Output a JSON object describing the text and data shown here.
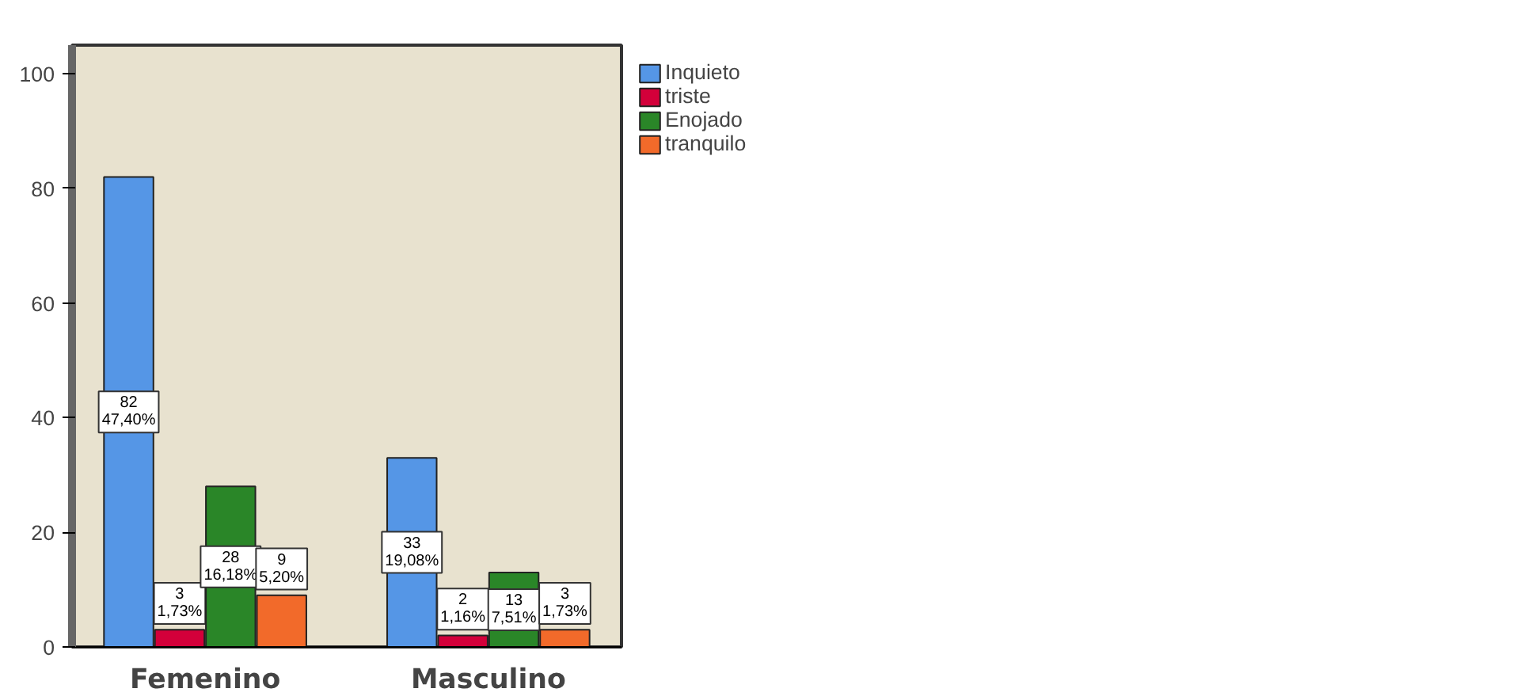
{
  "chart_data": {
    "type": "bar",
    "categories": [
      "Femenino",
      "Masculino"
    ],
    "series": [
      {
        "name": "Inquieto",
        "color": "#5596e6",
        "values": [
          82,
          33
        ],
        "value_labels": [
          "82\n47,40%",
          "33\n19,08%"
        ]
      },
      {
        "name": "triste",
        "color": "#d3003a",
        "values": [
          3,
          2
        ],
        "value_labels": [
          "3\n1,73%",
          "2\n1,16%"
        ]
      },
      {
        "name": "Enojado",
        "color": "#2a8628",
        "values": [
          28,
          13
        ],
        "value_labels": [
          "28\n16,18%",
          "13\n7,51%"
        ]
      },
      {
        "name": "tranquilo",
        "color": "#f26a2a",
        "values": [
          9,
          3
        ],
        "value_labels": [
          "9\n5,20%",
          "3\n1,73%"
        ]
      }
    ],
    "ylim": [
      0,
      105
    ],
    "yticks": [
      0,
      20,
      40,
      60,
      80,
      100
    ],
    "grid": false,
    "legend": "top right"
  }
}
